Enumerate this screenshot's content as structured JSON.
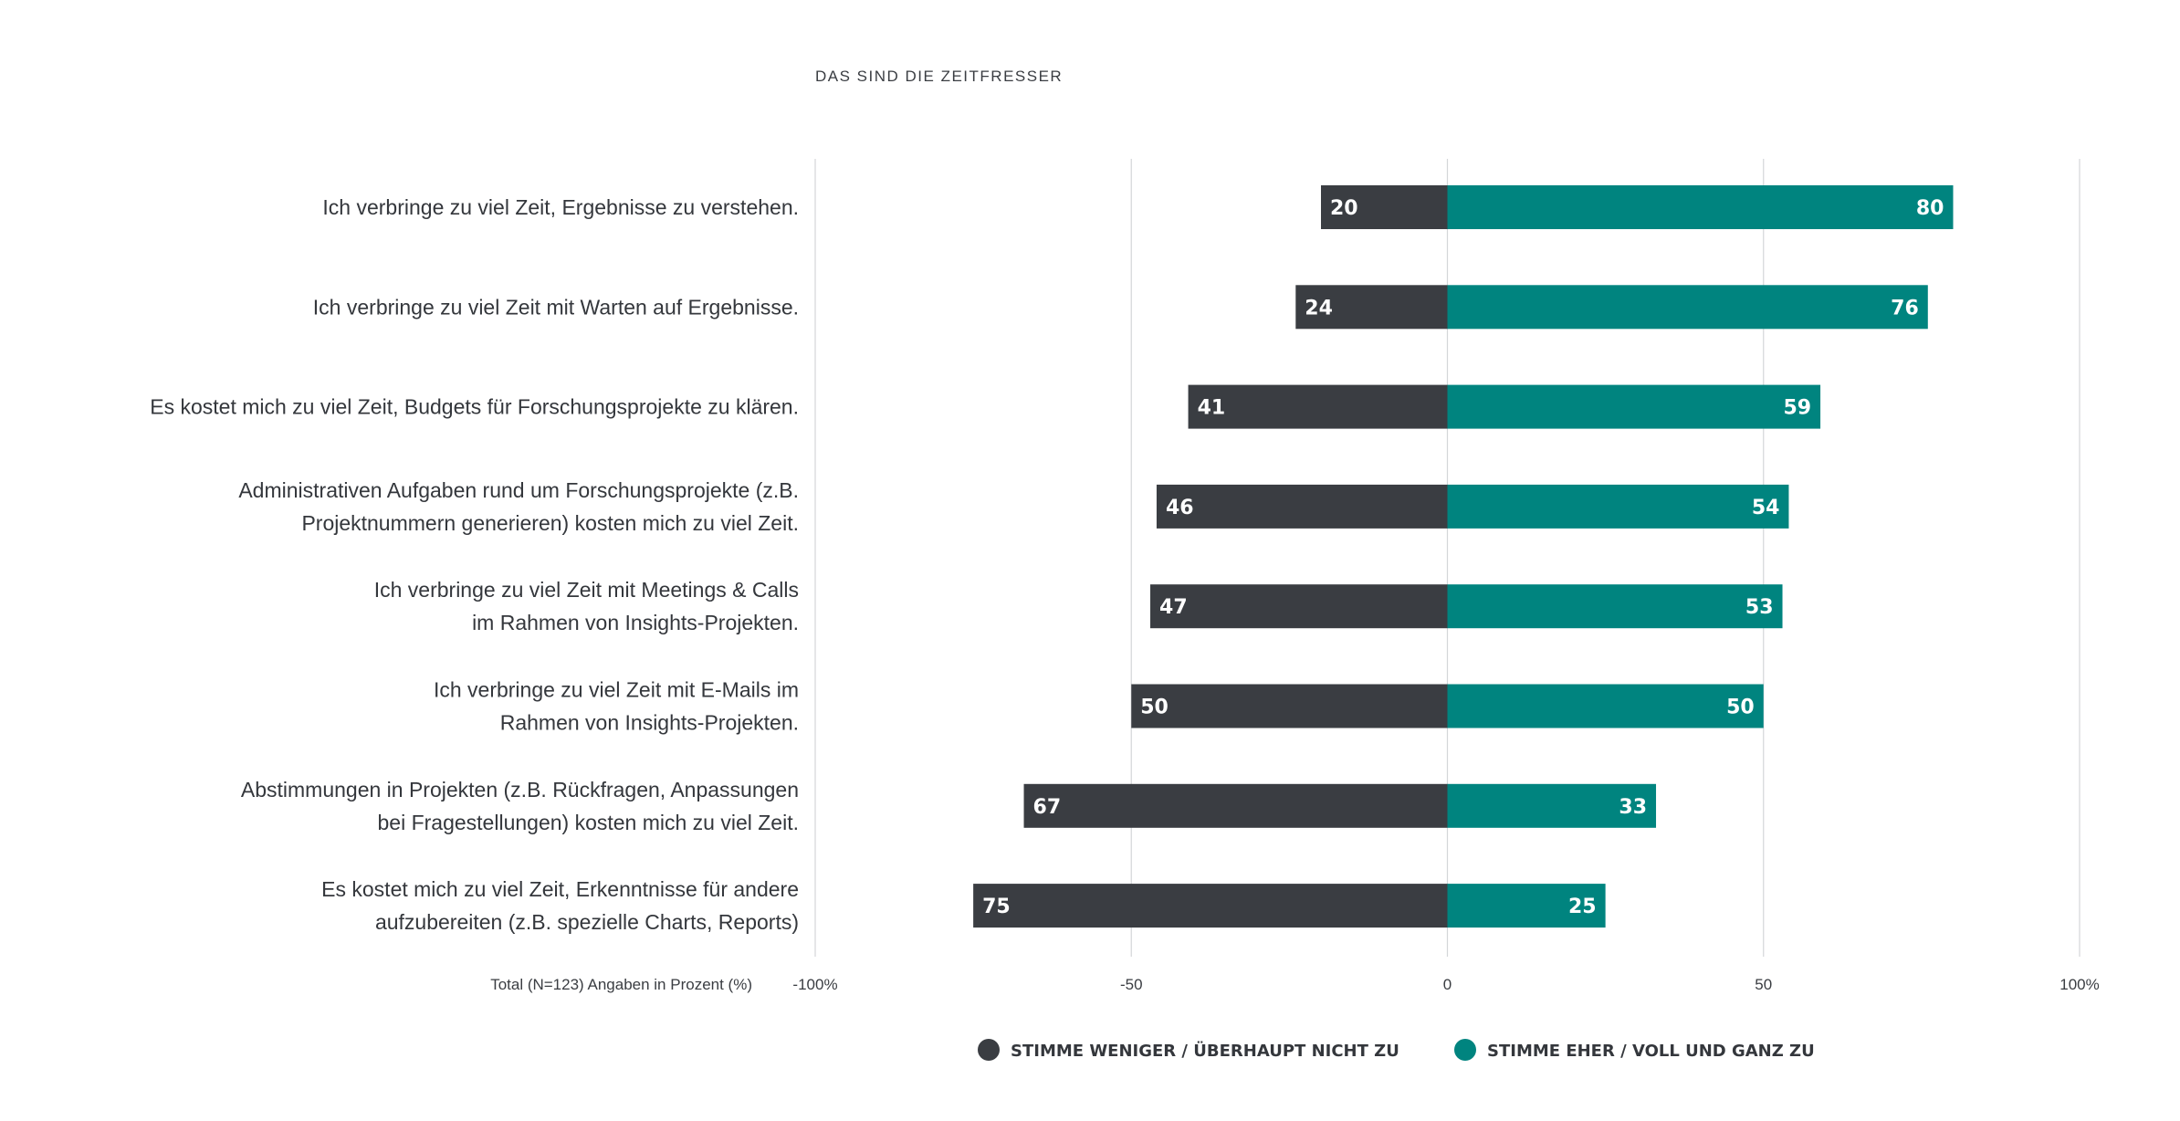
{
  "chart_data": {
    "type": "bar",
    "orientation": "horizontal-diverging",
    "title": "DAS SIND DIE ZEITFRESSER",
    "note": "Total (N=123) Angaben in Prozent (%)",
    "xlim": [
      -100,
      100
    ],
    "xticks": [
      -100,
      -50,
      0,
      50,
      100
    ],
    "xtick_labels": [
      "-100%",
      "-50",
      "0",
      "50",
      "100%"
    ],
    "categories": [
      [
        "Ich verbringe zu viel Zeit, Ergebnisse zu verstehen."
      ],
      [
        "Ich verbringe zu viel Zeit mit Warten auf Ergebnisse."
      ],
      [
        "Es kostet mich zu viel Zeit, Budgets für Forschungsprojekte zu klären."
      ],
      [
        "Administrativen Aufgaben rund um Forschungsprojekte (z.B.",
        "Projektnummern generieren) kosten mich zu viel Zeit."
      ],
      [
        "Ich verbringe zu viel Zeit mit Meetings & Calls",
        "im Rahmen von Insights-Projekten."
      ],
      [
        "Ich verbringe zu viel Zeit mit E-Mails im",
        "Rahmen von Insights-Projekten."
      ],
      [
        "Abstimmungen in Projekten (z.B. Rückfragen, Anpassungen",
        "bei Fragestellungen) kosten mich zu viel Zeit."
      ],
      [
        "Es kostet mich zu viel Zeit, Erkenntnisse für andere",
        "aufzubereiten (z.B. spezielle Charts, Reports)"
      ]
    ],
    "series": [
      {
        "name": "STIMME WENIGER / ÜBERHAUPT NICHT ZU",
        "color": "#3a3d42",
        "direction": "negative",
        "values": [
          20,
          24,
          41,
          46,
          47,
          50,
          67,
          75
        ]
      },
      {
        "name": "STIMME EHER / VOLL UND GANZ ZU",
        "color": "#00847f",
        "direction": "positive",
        "values": [
          80,
          76,
          59,
          54,
          53,
          50,
          33,
          25
        ]
      }
    ],
    "legend_position": "bottom-center",
    "grid": true
  }
}
